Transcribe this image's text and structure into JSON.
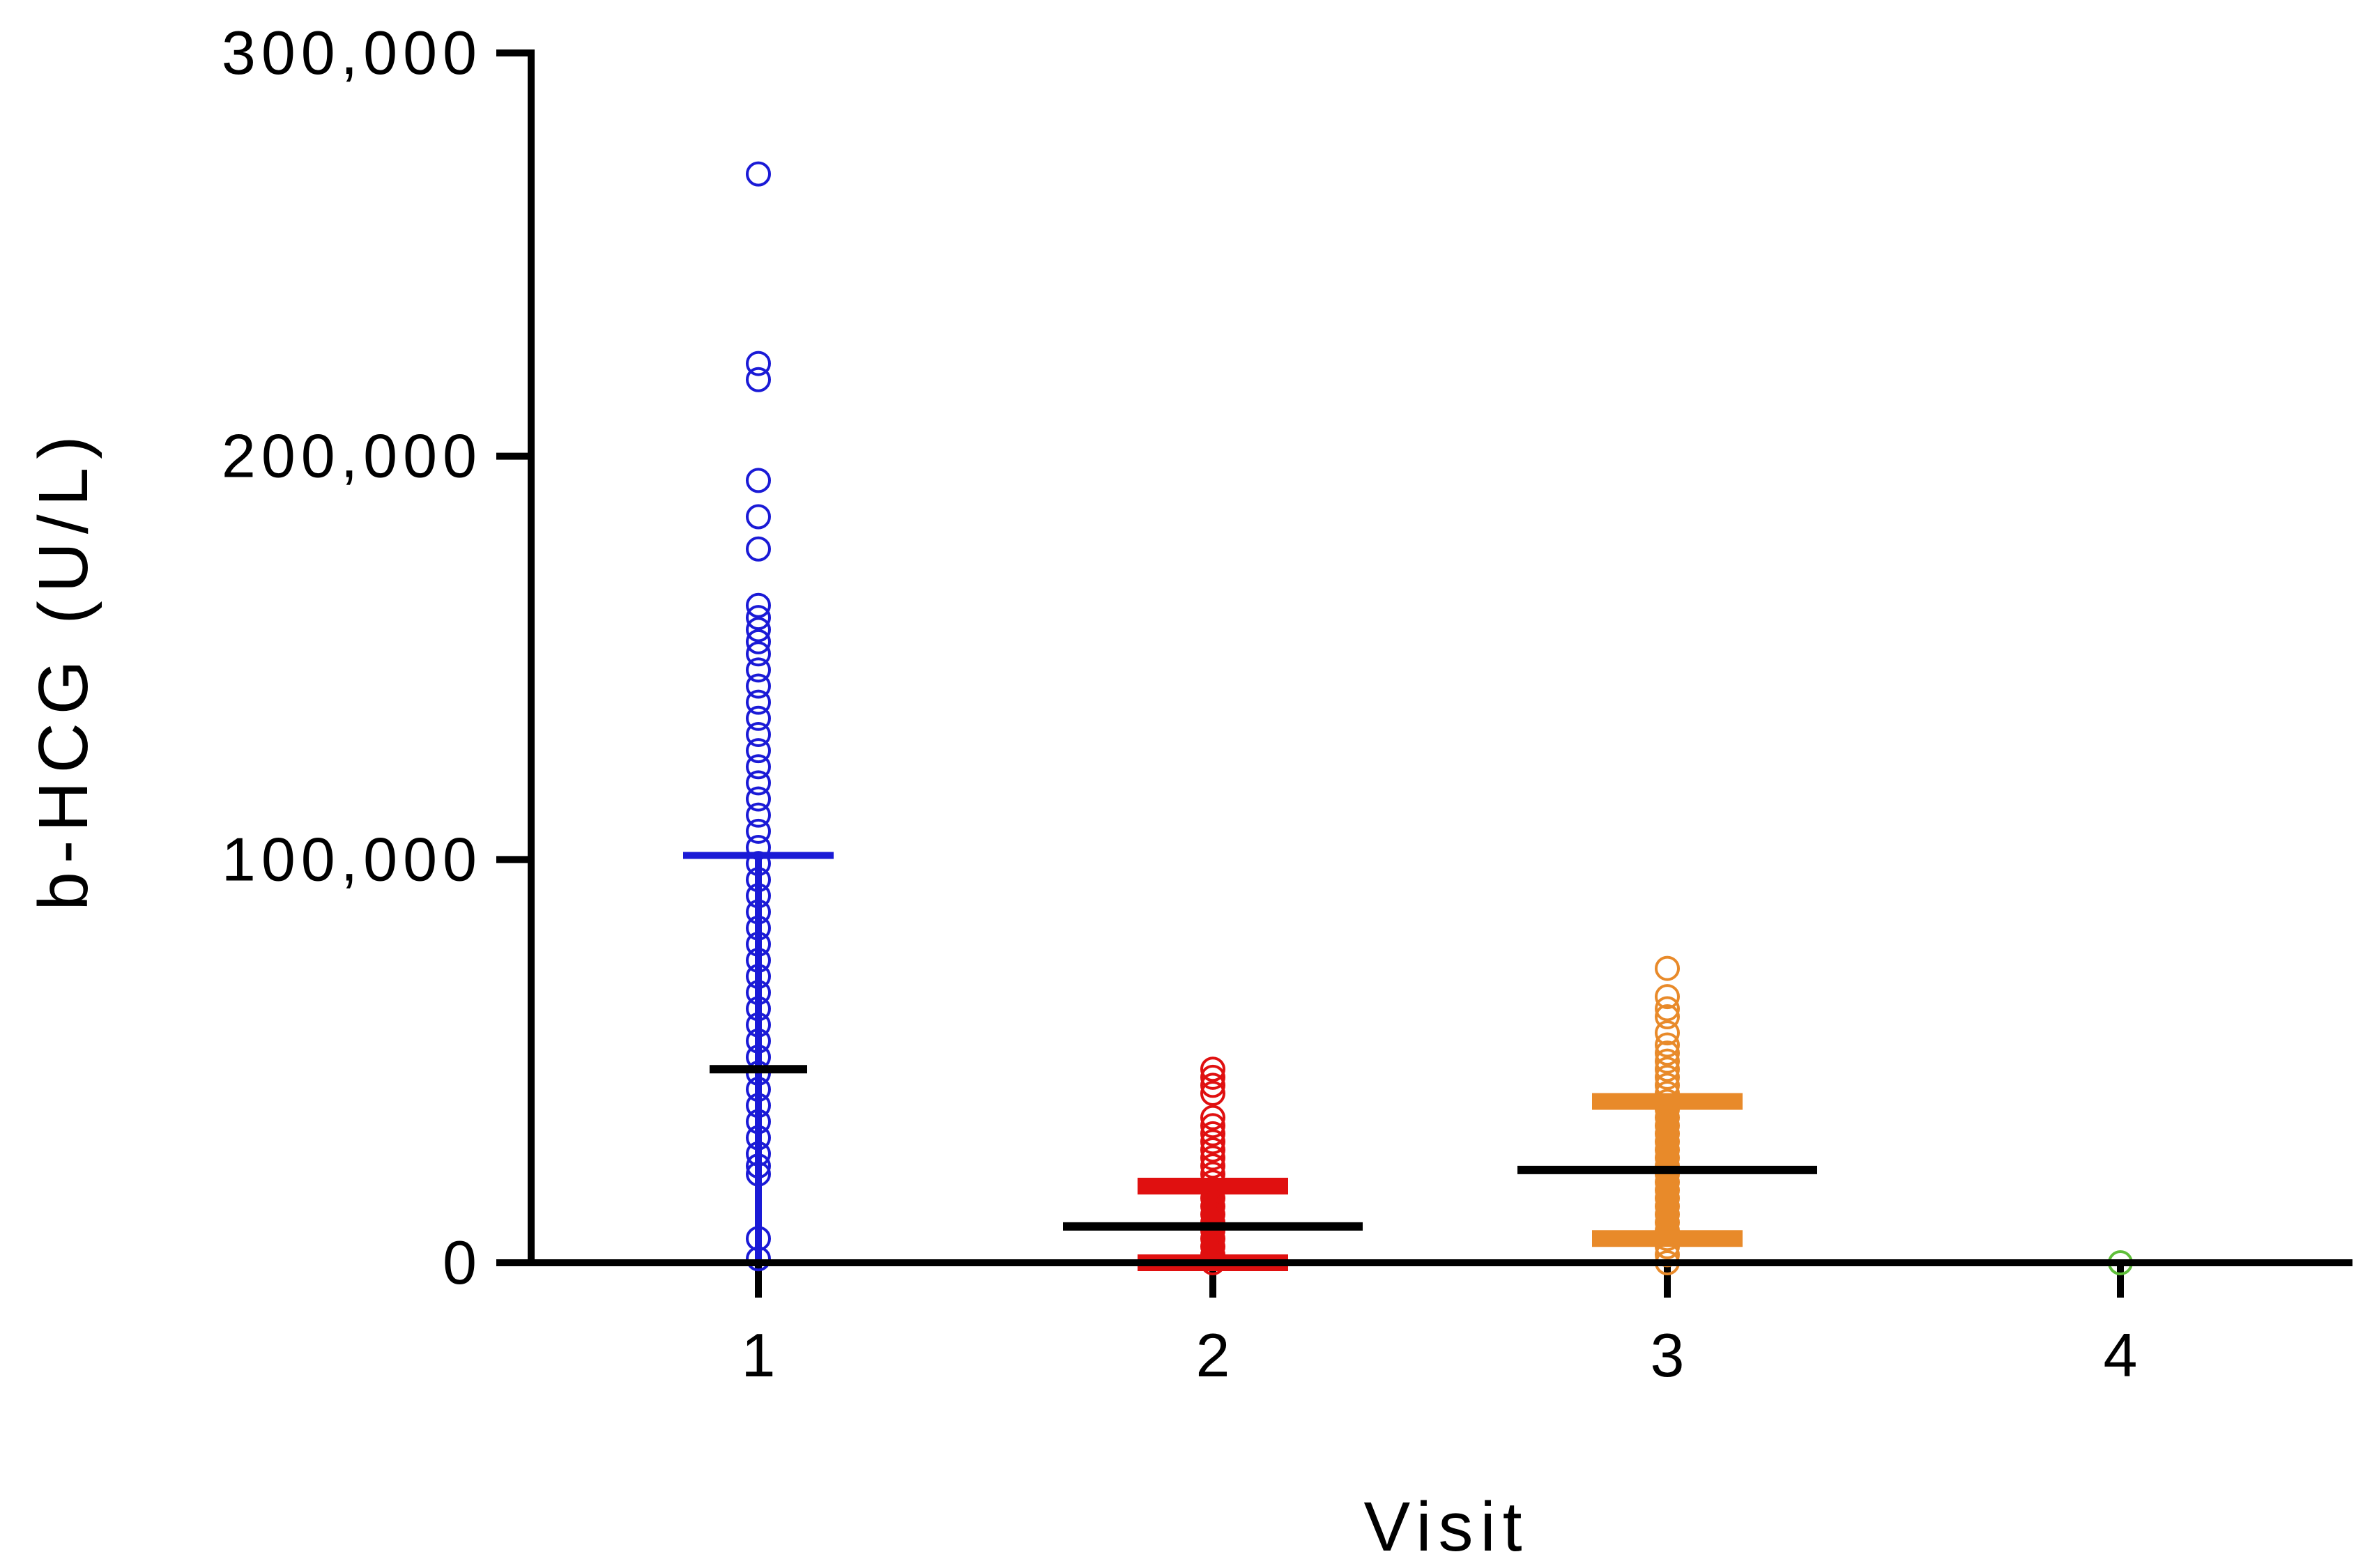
{
  "chart_data": {
    "type": "scatter",
    "title": "",
    "xlabel": "Visit",
    "ylabel": "b-HCG (U/L)",
    "ylim": [
      0,
      300000
    ],
    "y_ticks": [
      0,
      100000,
      200000,
      300000
    ],
    "y_tick_labels": [
      "0",
      "100,000",
      "200,000",
      "300,000"
    ],
    "categories": [
      "1",
      "2",
      "3",
      "4"
    ],
    "grid": false,
    "legend": "none",
    "series": [
      {
        "category": "1",
        "color": "#1a1ad6",
        "mean": 48000,
        "sd_upper": 101000,
        "sd_lower": 0,
        "values": [
          270000,
          223000,
          219000,
          194000,
          185000,
          177000,
          163000,
          160000,
          157000,
          154000,
          151000,
          147000,
          143000,
          139000,
          135000,
          131000,
          127000,
          123000,
          119000,
          115000,
          111000,
          107000,
          103000,
          99000,
          95000,
          91000,
          87000,
          83000,
          79000,
          75000,
          71000,
          67000,
          63000,
          59000,
          55000,
          51000,
          47000,
          43000,
          39000,
          35000,
          31000,
          27000,
          24000,
          22000,
          6000,
          1000
        ]
      },
      {
        "category": "2",
        "color": "#e01010",
        "mean": 9000,
        "sd_upper": 19000,
        "sd_lower": 0,
        "values": [
          48000,
          46000,
          44000,
          42000,
          36000,
          34000,
          32000,
          30000,
          28000,
          26000,
          24000,
          22000,
          20000,
          18000,
          16000,
          14000,
          12000,
          10000,
          8000,
          6000,
          4000,
          2000,
          0
        ]
      },
      {
        "category": "3",
        "color": "#e88a2a",
        "mean": 23000,
        "sd_upper": 40000,
        "sd_lower": 6000,
        "values": [
          73000,
          66000,
          63000,
          61000,
          57000,
          54000,
          52000,
          50000,
          48000,
          46000,
          44000,
          42000,
          40000,
          38000,
          36000,
          34000,
          32000,
          30000,
          28000,
          26000,
          24000,
          22000,
          20000,
          18000,
          16000,
          14000,
          12000,
          10000,
          8000,
          6000,
          4000,
          2000,
          0
        ]
      },
      {
        "category": "4",
        "color": "#5fbf3a",
        "mean": 0,
        "sd_upper": 0,
        "sd_lower": 0,
        "values": [
          0
        ]
      }
    ]
  }
}
